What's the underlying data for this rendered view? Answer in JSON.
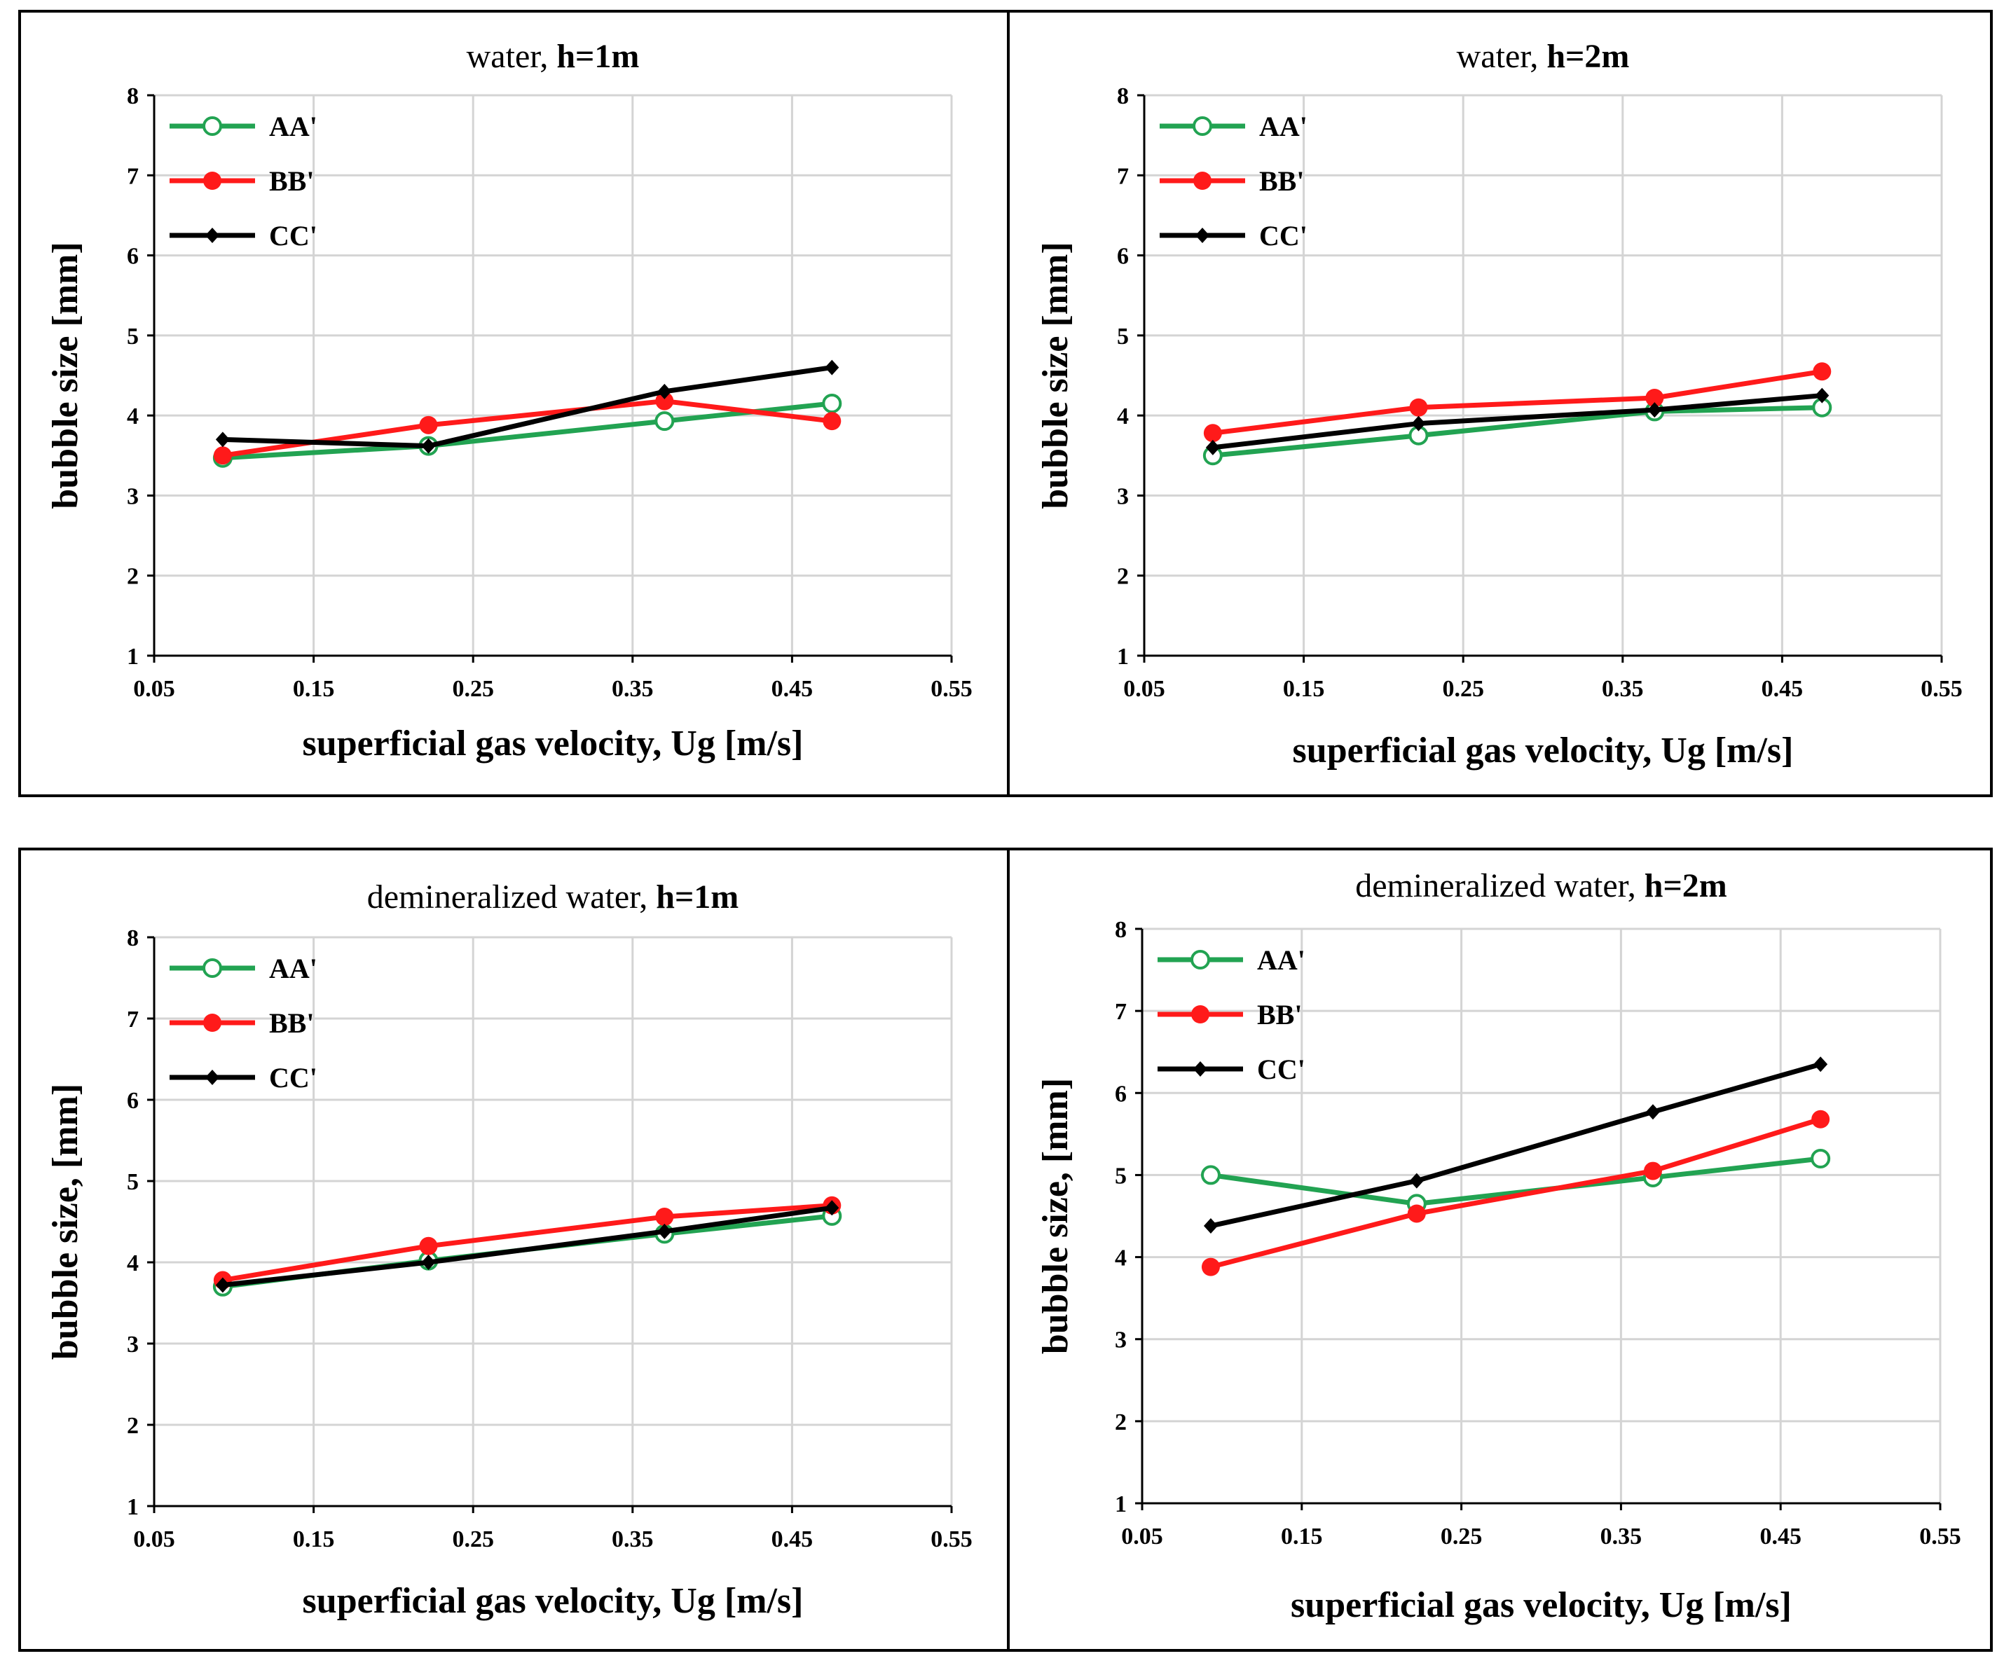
{
  "chart_data": [
    {
      "type": "line",
      "title": "water, h=1m",
      "title_plain": "water,",
      "title_bold": "h=1m",
      "xlabel": "superficial gas velocity, Ug [m/s]",
      "ylabel": "bubble size [mm]",
      "xlim": [
        0.05,
        0.55
      ],
      "ylim": [
        1,
        8
      ],
      "x_ticks": [
        "0.05",
        "0.15",
        "0.25",
        "0.35",
        "0.45",
        "0.55"
      ],
      "y_ticks": [
        "1",
        "2",
        "3",
        "4",
        "5",
        "6",
        "7",
        "8"
      ],
      "grid": true,
      "legend_position": "top-left",
      "series": [
        {
          "name": "AA'",
          "color": "#22a352",
          "marker": "open-circle",
          "x": [
            0.093,
            0.222,
            0.37,
            0.475
          ],
          "y": [
            3.47,
            3.62,
            3.93,
            4.15
          ]
        },
        {
          "name": "BB'",
          "color": "#ff1a1a",
          "marker": "filled-circle",
          "x": [
            0.093,
            0.222,
            0.37,
            0.475
          ],
          "y": [
            3.5,
            3.88,
            4.18,
            3.93
          ]
        },
        {
          "name": "CC'",
          "color": "#000000",
          "marker": "diamond",
          "x": [
            0.093,
            0.222,
            0.37,
            0.475
          ],
          "y": [
            3.7,
            3.62,
            4.3,
            4.6
          ]
        }
      ]
    },
    {
      "type": "line",
      "title": "water, h=2m",
      "title_plain": "water,",
      "title_bold": "h=2m",
      "xlabel": "superficial gas velocity, Ug [m/s]",
      "ylabel": "bubble size [mm]",
      "xlim": [
        0.05,
        0.55
      ],
      "ylim": [
        1,
        8
      ],
      "x_ticks": [
        "0.05",
        "0.15",
        "0.25",
        "0.35",
        "0.45",
        "0.55"
      ],
      "y_ticks": [
        "1",
        "2",
        "3",
        "4",
        "5",
        "6",
        "7",
        "8"
      ],
      "grid": true,
      "legend_position": "top-left",
      "series": [
        {
          "name": "AA'",
          "color": "#22a352",
          "marker": "open-circle",
          "x": [
            0.093,
            0.222,
            0.37,
            0.475
          ],
          "y": [
            3.5,
            3.75,
            4.05,
            4.1
          ]
        },
        {
          "name": "BB'",
          "color": "#ff1a1a",
          "marker": "filled-circle",
          "x": [
            0.093,
            0.222,
            0.37,
            0.475
          ],
          "y": [
            3.78,
            4.1,
            4.22,
            4.55
          ]
        },
        {
          "name": "CC'",
          "color": "#000000",
          "marker": "diamond",
          "x": [
            0.093,
            0.222,
            0.37,
            0.475
          ],
          "y": [
            3.6,
            3.9,
            4.07,
            4.25
          ]
        }
      ]
    },
    {
      "type": "line",
      "title": "demineralized water, h=1m",
      "title_plain": "demineralized water,",
      "title_bold": "h=1m",
      "xlabel": "superficial gas velocity, Ug [m/s]",
      "ylabel": "bubble size,  [mm]",
      "xlim": [
        0.05,
        0.55
      ],
      "ylim": [
        1,
        8
      ],
      "x_ticks": [
        "0.05",
        "0.15",
        "0.25",
        "0.35",
        "0.45",
        "0.55"
      ],
      "y_ticks": [
        "1",
        "2",
        "3",
        "4",
        "5",
        "6",
        "7",
        "8"
      ],
      "grid": true,
      "legend_position": "top-left",
      "series": [
        {
          "name": "AA'",
          "color": "#22a352",
          "marker": "open-circle",
          "x": [
            0.093,
            0.222,
            0.37,
            0.475
          ],
          "y": [
            3.7,
            4.02,
            4.35,
            4.57
          ]
        },
        {
          "name": "BB'",
          "color": "#ff1a1a",
          "marker": "filled-circle",
          "x": [
            0.093,
            0.222,
            0.37,
            0.475
          ],
          "y": [
            3.78,
            4.2,
            4.56,
            4.7
          ]
        },
        {
          "name": "CC'",
          "color": "#000000",
          "marker": "diamond",
          "x": [
            0.093,
            0.222,
            0.37,
            0.475
          ],
          "y": [
            3.72,
            4.0,
            4.38,
            4.67
          ]
        }
      ]
    },
    {
      "type": "line",
      "title": "demineralized water, h=2m",
      "title_plain": "demineralized water,",
      "title_bold": "h=2m",
      "xlabel": "superficial gas velocity, Ug [m/s]",
      "ylabel": "bubble size,  [mm]",
      "xlim": [
        0.05,
        0.55
      ],
      "ylim": [
        1,
        8
      ],
      "x_ticks": [
        "0.05",
        "0.15",
        "0.25",
        "0.35",
        "0.45",
        "0.55"
      ],
      "y_ticks": [
        "1",
        "2",
        "3",
        "4",
        "5",
        "6",
        "7",
        "8"
      ],
      "grid": true,
      "legend_position": "top-left",
      "series": [
        {
          "name": "AA'",
          "color": "#22a352",
          "marker": "open-circle",
          "x": [
            0.093,
            0.222,
            0.37,
            0.475
          ],
          "y": [
            5.0,
            4.65,
            4.97,
            5.2
          ]
        },
        {
          "name": "BB'",
          "color": "#ff1a1a",
          "marker": "filled-circle",
          "x": [
            0.093,
            0.222,
            0.37,
            0.475
          ],
          "y": [
            3.88,
            4.53,
            5.05,
            5.68
          ]
        },
        {
          "name": "CC'",
          "color": "#000000",
          "marker": "diamond",
          "x": [
            0.093,
            0.222,
            0.37,
            0.475
          ],
          "y": [
            4.38,
            4.93,
            5.77,
            6.35
          ]
        }
      ]
    }
  ]
}
